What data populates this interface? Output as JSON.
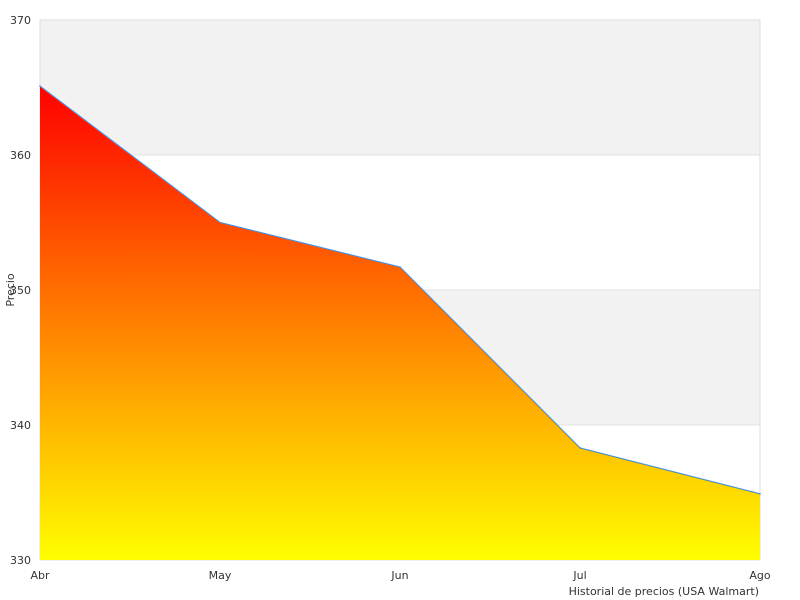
{
  "chart_data": {
    "type": "area",
    "title": "",
    "xlabel": "Historial de precios (USA Walmart)",
    "ylabel": "Precio",
    "categories": [
      "Abr",
      "May",
      "Jun",
      "Jul",
      "Ago"
    ],
    "series": [
      {
        "values": [
          365.1,
          355.0,
          351.7,
          338.3,
          334.9
        ]
      }
    ],
    "ylim": [
      330,
      370
    ],
    "yticks": [
      330,
      340,
      350,
      360,
      370
    ],
    "ytick_labels": [
      "330",
      "340",
      "350",
      "360",
      "370"
    ],
    "grid": true,
    "legend": "none",
    "colors": {
      "fill_top": "#ff0000",
      "fill_bottom": "#ffff00",
      "line": "#4a90d9",
      "band_alt": "#f2f2f2",
      "band": "#ffffff",
      "grid": "#e2e2e2"
    }
  }
}
